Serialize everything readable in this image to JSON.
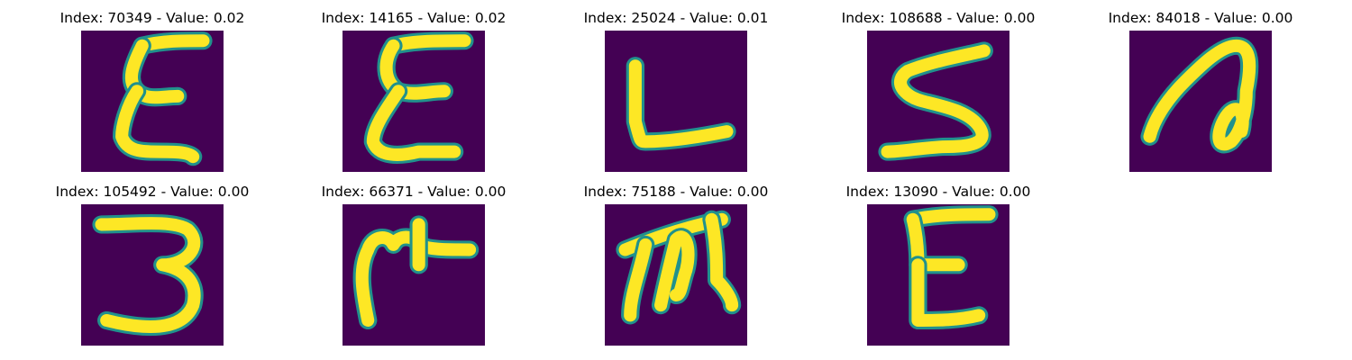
{
  "figure": {
    "background_color": "#ffffff",
    "image_background_color": "#440154",
    "stroke_edge_color": "#21918c",
    "stroke_core_color": "#fde725",
    "panels": [
      {
        "index": "70349",
        "value": "0.02",
        "glyph": "E",
        "title": "Index: 70349 - Value: 0.02"
      },
      {
        "index": "14165",
        "value": "0.02",
        "glyph": "E",
        "title": "Index: 14165 - Value: 0.02"
      },
      {
        "index": "25024",
        "value": "0.01",
        "glyph": "L",
        "title": "Index: 25024 - Value: 0.01"
      },
      {
        "index": "108688",
        "value": "0.00",
        "glyph": "S",
        "title": "Index: 108688 - Value: 0.00"
      },
      {
        "index": "84018",
        "value": "0.00",
        "glyph": "a",
        "title": "Index: 84018 - Value: 0.00"
      },
      {
        "index": "105492",
        "value": "0.00",
        "glyph": "3",
        "title": "Index: 105492 - Value: 0.00"
      },
      {
        "index": "66371",
        "value": "0.00",
        "glyph": "M",
        "title": "Index: 66371 - Value: 0.00"
      },
      {
        "index": "75188",
        "value": "0.00",
        "glyph": "m",
        "title": "Index: 75188 - Value: 0.00"
      },
      {
        "index": "13090",
        "value": "0.00",
        "glyph": "E",
        "title": "Index: 13090 - Value: 0.00"
      }
    ]
  }
}
